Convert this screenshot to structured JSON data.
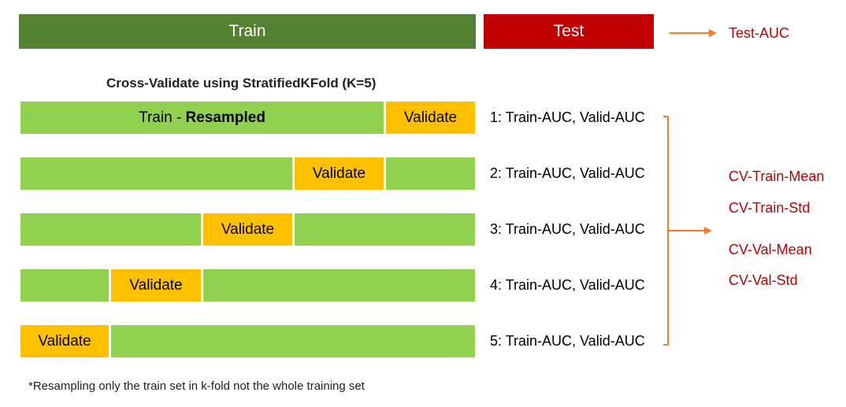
{
  "header": {
    "train_label": "Train",
    "test_label": "Test",
    "test_result": "Test-AUC"
  },
  "cv": {
    "title": "Cross-Validate using StratifiedKFold (K=5)",
    "train_prefix": "Train - ",
    "train_bold": "Resampled",
    "validate_label": "Validate",
    "folds": [
      "1: Train-AUC, Valid-AUC",
      "2: Train-AUC, Valid-AUC",
      "3: Train-AUC, Valid-AUC",
      "4: Train-AUC, Valid-AUC",
      "5: Train-AUC, Valid-AUC"
    ]
  },
  "metrics": {
    "cv_train_mean": "CV-Train-Mean",
    "cv_train_std": "CV-Train-Std",
    "cv_val_mean": "CV-Val-Mean",
    "cv_val_std": "CV-Val-Std"
  },
  "footnote": "*Resampling only the train set in k-fold not the whole training set",
  "colors": {
    "train_dark": "#548235",
    "test_red": "#c00000",
    "train_light": "#92d050",
    "validate_orange": "#ffc000",
    "arrow_orange": "#ed7d31"
  }
}
